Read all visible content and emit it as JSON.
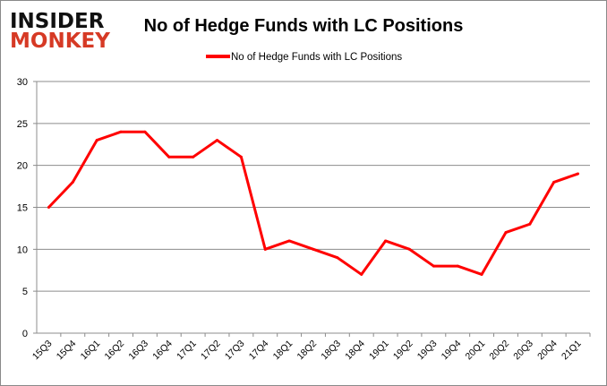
{
  "logo": {
    "line1": "INSIDER",
    "line2": "MONKEY"
  },
  "chart_data": {
    "type": "line",
    "title": "No of Hedge Funds with LC Positions",
    "xlabel": "",
    "ylabel": "",
    "legend_position": "top",
    "grid": true,
    "ylim": [
      0,
      30
    ],
    "yticks": [
      0,
      5,
      10,
      15,
      20,
      25,
      30
    ],
    "categories": [
      "15Q3",
      "15Q4",
      "16Q1",
      "16Q2",
      "16Q3",
      "16Q4",
      "17Q1",
      "17Q2",
      "17Q3",
      "17Q4",
      "18Q1",
      "18Q2",
      "18Q3",
      "18Q4",
      "19Q1",
      "19Q2",
      "19Q3",
      "19Q4",
      "20Q1",
      "20Q2",
      "20Q3",
      "20Q4",
      "21Q1"
    ],
    "series": [
      {
        "name": "No of Hedge Funds with LC Positions",
        "color": "#ff0000",
        "values": [
          15,
          18,
          23,
          24,
          24,
          21,
          21,
          23,
          21,
          10,
          11,
          10,
          9,
          7,
          11,
          10,
          8,
          8,
          7,
          12,
          13,
          18,
          19
        ]
      }
    ]
  }
}
